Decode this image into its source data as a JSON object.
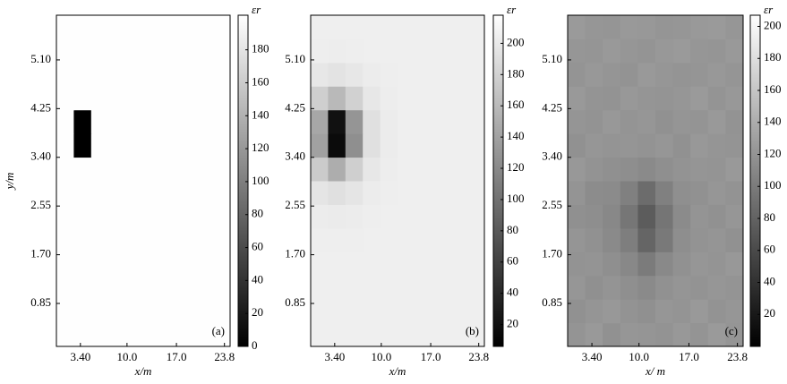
{
  "chart_data": [
    {
      "type": "heatmap",
      "panel_label": "(a)",
      "x_label": "x/m",
      "y_label": "y/m",
      "colorbar_label": "εr",
      "xlim": [
        0,
        24.6
      ],
      "ylim": [
        0.1,
        5.88
      ],
      "xticks": [
        {
          "value": 3.4,
          "label": "3.40"
        },
        {
          "value": 10,
          "label": "10.0"
        },
        {
          "value": 17,
          "label": "17.0"
        },
        23.8
      ],
      "yticks": [
        0.85,
        {
          "value": 1.7,
          "label": "1.70"
        },
        2.55,
        {
          "value": 3.4,
          "label": "3.40"
        },
        4.25,
        {
          "value": 5.1,
          "label": "5.10"
        }
      ],
      "zlim": [
        0,
        201
      ],
      "zticks": [
        0,
        20,
        40,
        60,
        80,
        100,
        120,
        140,
        160,
        180
      ],
      "z": [
        [
          200,
          200,
          200,
          200,
          200,
          200,
          200,
          200,
          200,
          200
        ],
        [
          200,
          200,
          200,
          200,
          200,
          200,
          200,
          200,
          200,
          200
        ],
        [
          200,
          200,
          200,
          200,
          200,
          200,
          200,
          200,
          200,
          200
        ],
        [
          200,
          200,
          200,
          200,
          200,
          200,
          200,
          200,
          200,
          200
        ],
        [
          200,
          200,
          200,
          200,
          200,
          200,
          200,
          200,
          200,
          200
        ],
        [
          200,
          200,
          200,
          200,
          200,
          200,
          200,
          200,
          200,
          200
        ],
        [
          200,
          200,
          200,
          200,
          200,
          200,
          200,
          200,
          200,
          200
        ],
        [
          200,
          200,
          200,
          200,
          200,
          200,
          200,
          200,
          200,
          200
        ],
        [
          200,
          0,
          200,
          200,
          200,
          200,
          200,
          200,
          200,
          200
        ],
        [
          200,
          0,
          200,
          200,
          200,
          200,
          200,
          200,
          200,
          200
        ],
        [
          200,
          200,
          200,
          200,
          200,
          200,
          200,
          200,
          200,
          200
        ],
        [
          200,
          200,
          200,
          200,
          200,
          200,
          200,
          200,
          200,
          200
        ],
        [
          200,
          200,
          200,
          200,
          200,
          200,
          200,
          200,
          200,
          200
        ],
        [
          200,
          200,
          200,
          200,
          200,
          200,
          200,
          200,
          200,
          200
        ]
      ]
    },
    {
      "type": "heatmap",
      "panel_label": "(b)",
      "x_label": "x/m",
      "colorbar_label": "εr",
      "xlim": [
        0,
        24.6
      ],
      "ylim": [
        0.1,
        5.88
      ],
      "xticks": [
        {
          "value": 3.4,
          "label": "3.40"
        },
        {
          "value": 10,
          "label": "10.0"
        },
        {
          "value": 17,
          "label": "17.0"
        },
        23.8
      ],
      "yticks": [
        0.85,
        {
          "value": 1.7,
          "label": "1.70"
        },
        2.55,
        {
          "value": 3.4,
          "label": "3.40"
        },
        4.25,
        {
          "value": 5.1,
          "label": "5.10"
        }
      ],
      "zlim": [
        6,
        218
      ],
      "zticks": [
        20,
        40,
        60,
        80,
        100,
        120,
        140,
        160,
        180,
        200
      ],
      "z": [
        [
          205,
          205,
          205,
          205,
          205,
          205,
          205,
          205,
          205,
          205
        ],
        [
          205,
          205,
          205,
          205,
          205,
          205,
          205,
          205,
          205,
          205
        ],
        [
          205,
          205,
          205,
          205,
          205,
          205,
          205,
          205,
          205,
          205
        ],
        [
          205,
          205,
          205,
          205,
          205,
          205,
          205,
          205,
          205,
          205
        ],
        [
          204,
          204,
          204,
          205,
          205,
          205,
          205,
          205,
          205,
          205
        ],
        [
          202,
          201,
          202,
          204,
          205,
          205,
          205,
          205,
          205,
          205
        ],
        [
          196,
          192,
          196,
          202,
          204,
          205,
          205,
          205,
          205,
          205
        ],
        [
          175,
          150,
          178,
          198,
          203,
          205,
          205,
          205,
          205,
          205
        ],
        [
          140,
          15,
          125,
          192,
          202,
          205,
          205,
          205,
          205,
          205
        ],
        [
          145,
          20,
          130,
          192,
          202,
          205,
          205,
          205,
          205,
          205
        ],
        [
          178,
          160,
          180,
          198,
          203,
          205,
          205,
          205,
          205,
          205
        ],
        [
          198,
          195,
          198,
          202,
          204,
          205,
          205,
          205,
          205,
          205
        ],
        [
          204,
          203,
          204,
          205,
          205,
          205,
          205,
          205,
          205,
          205
        ],
        [
          205,
          205,
          205,
          205,
          205,
          205,
          205,
          205,
          205,
          205
        ]
      ]
    },
    {
      "type": "heatmap",
      "panel_label": "(c)",
      "x_label": "x/ m",
      "colorbar_label": "εr",
      "xlim": [
        0,
        24.6
      ],
      "ylim": [
        0.1,
        5.88
      ],
      "xticks": [
        {
          "value": 3.4,
          "label": "3.40"
        },
        {
          "value": 10,
          "label": "10.0"
        },
        {
          "value": 17,
          "label": "17.0"
        },
        23.8
      ],
      "yticks": [
        0.85,
        {
          "value": 1.7,
          "label": "1.70"
        },
        2.55,
        {
          "value": 3.4,
          "label": "3.40"
        },
        4.25,
        {
          "value": 5.1,
          "label": "5.10"
        }
      ],
      "zlim": [
        0,
        207
      ],
      "zticks": [
        20,
        40,
        60,
        80,
        100,
        120,
        140,
        160,
        180,
        200
      ],
      "z": [
        [
          120,
          124,
          118,
          122,
          121,
          119,
          123,
          120,
          125,
          121
        ],
        [
          118,
          121,
          123,
          119,
          117,
          122,
          120,
          124,
          119,
          122
        ],
        [
          122,
          117,
          120,
          116,
          112,
          118,
          121,
          119,
          122,
          120
        ],
        [
          119,
          120,
          116,
          110,
          100,
          111,
          118,
          122,
          120,
          123
        ],
        [
          121,
          118,
          112,
          102,
          82,
          98,
          115,
          119,
          121,
          118
        ],
        [
          117,
          115,
          110,
          96,
          75,
          95,
          113,
          120,
          118,
          122
        ],
        [
          120,
          114,
          113,
          104,
          88,
          104,
          116,
          118,
          122,
          119
        ],
        [
          123,
          119,
          117,
          115,
          112,
          116,
          119,
          121,
          120,
          124
        ],
        [
          118,
          122,
          120,
          121,
          119,
          122,
          118,
          123,
          121,
          120
        ],
        [
          121,
          119,
          123,
          120,
          122,
          118,
          121,
          120,
          124,
          119
        ],
        [
          124,
          120,
          119,
          123,
          121,
          120,
          122,
          125,
          120,
          123
        ],
        [
          120,
          123,
          121,
          119,
          124,
          122,
          120,
          121,
          123,
          121
        ],
        [
          122,
          121,
          124,
          122,
          120,
          123,
          125,
          122,
          121,
          124
        ],
        [
          125,
          122,
          121,
          124,
          123,
          121,
          122,
          124,
          125,
          122
        ]
      ]
    }
  ]
}
